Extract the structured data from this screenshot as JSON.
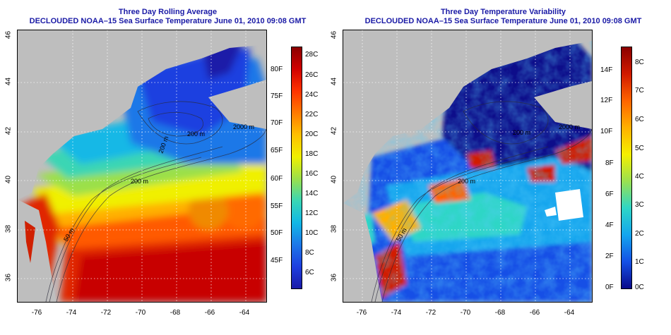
{
  "panels": [
    {
      "title_line1": "Three Day Rolling Average",
      "title_line2": "DECLOUDED NOAA–15 Sea Surface Temperature June 01, 2010 09:08 GMT",
      "colorbar": {
        "left_labels": [
          "80F",
          "75F",
          "70F",
          "65F",
          "60F",
          "55F",
          "50F",
          "45F"
        ],
        "right_labels": [
          "28C",
          "26C",
          "24C",
          "22C",
          "20C",
          "18C",
          "16C",
          "14C",
          "12C",
          "10C",
          "8C",
          "6C"
        ],
        "colors": [
          "#8b0000",
          "#d10000",
          "#ff3300",
          "#ff7a00",
          "#ffc000",
          "#f0f000",
          "#9be04a",
          "#3ad6b4",
          "#12b8e6",
          "#1c78e8",
          "#1e3fe0",
          "#1a1aa8"
        ]
      },
      "contour_labels": [
        "2000 m",
        "200 m",
        "50 m",
        "200 m",
        "200 m"
      ]
    },
    {
      "title_line1": "Three Day Temperature Variability",
      "title_line2": "DECLOUDED NOAA–15 Sea Surface Temperature June 01, 2010 09:08 GMT",
      "colorbar": {
        "left_labels": [
          "14F",
          "12F",
          "10F",
          "8F",
          "6F",
          "4F",
          "2F",
          "0F"
        ],
        "right_labels": [
          "8C",
          "7C",
          "6C",
          "5C",
          "4C",
          "3C",
          "2C",
          "1C",
          "0C"
        ],
        "colors": [
          "#8b0000",
          "#d11a00",
          "#ff6400",
          "#ffb000",
          "#f5f000",
          "#9ae050",
          "#2ed6c6",
          "#14a6ee",
          "#1450e6",
          "#0a0a8a"
        ]
      },
      "contour_labels": [
        "2000 m",
        "200 m",
        "50 m",
        "200 m"
      ]
    }
  ],
  "axes": {
    "lat_ticks": [
      "46",
      "44",
      "42",
      "40",
      "38",
      "36"
    ],
    "lon_ticks": [
      "-76",
      "-74",
      "-72",
      "-70",
      "-68",
      "-66",
      "-64"
    ]
  },
  "colors": {
    "title": "#1a1aa6",
    "land": "#bebebe",
    "grid": "#ffffff"
  }
}
